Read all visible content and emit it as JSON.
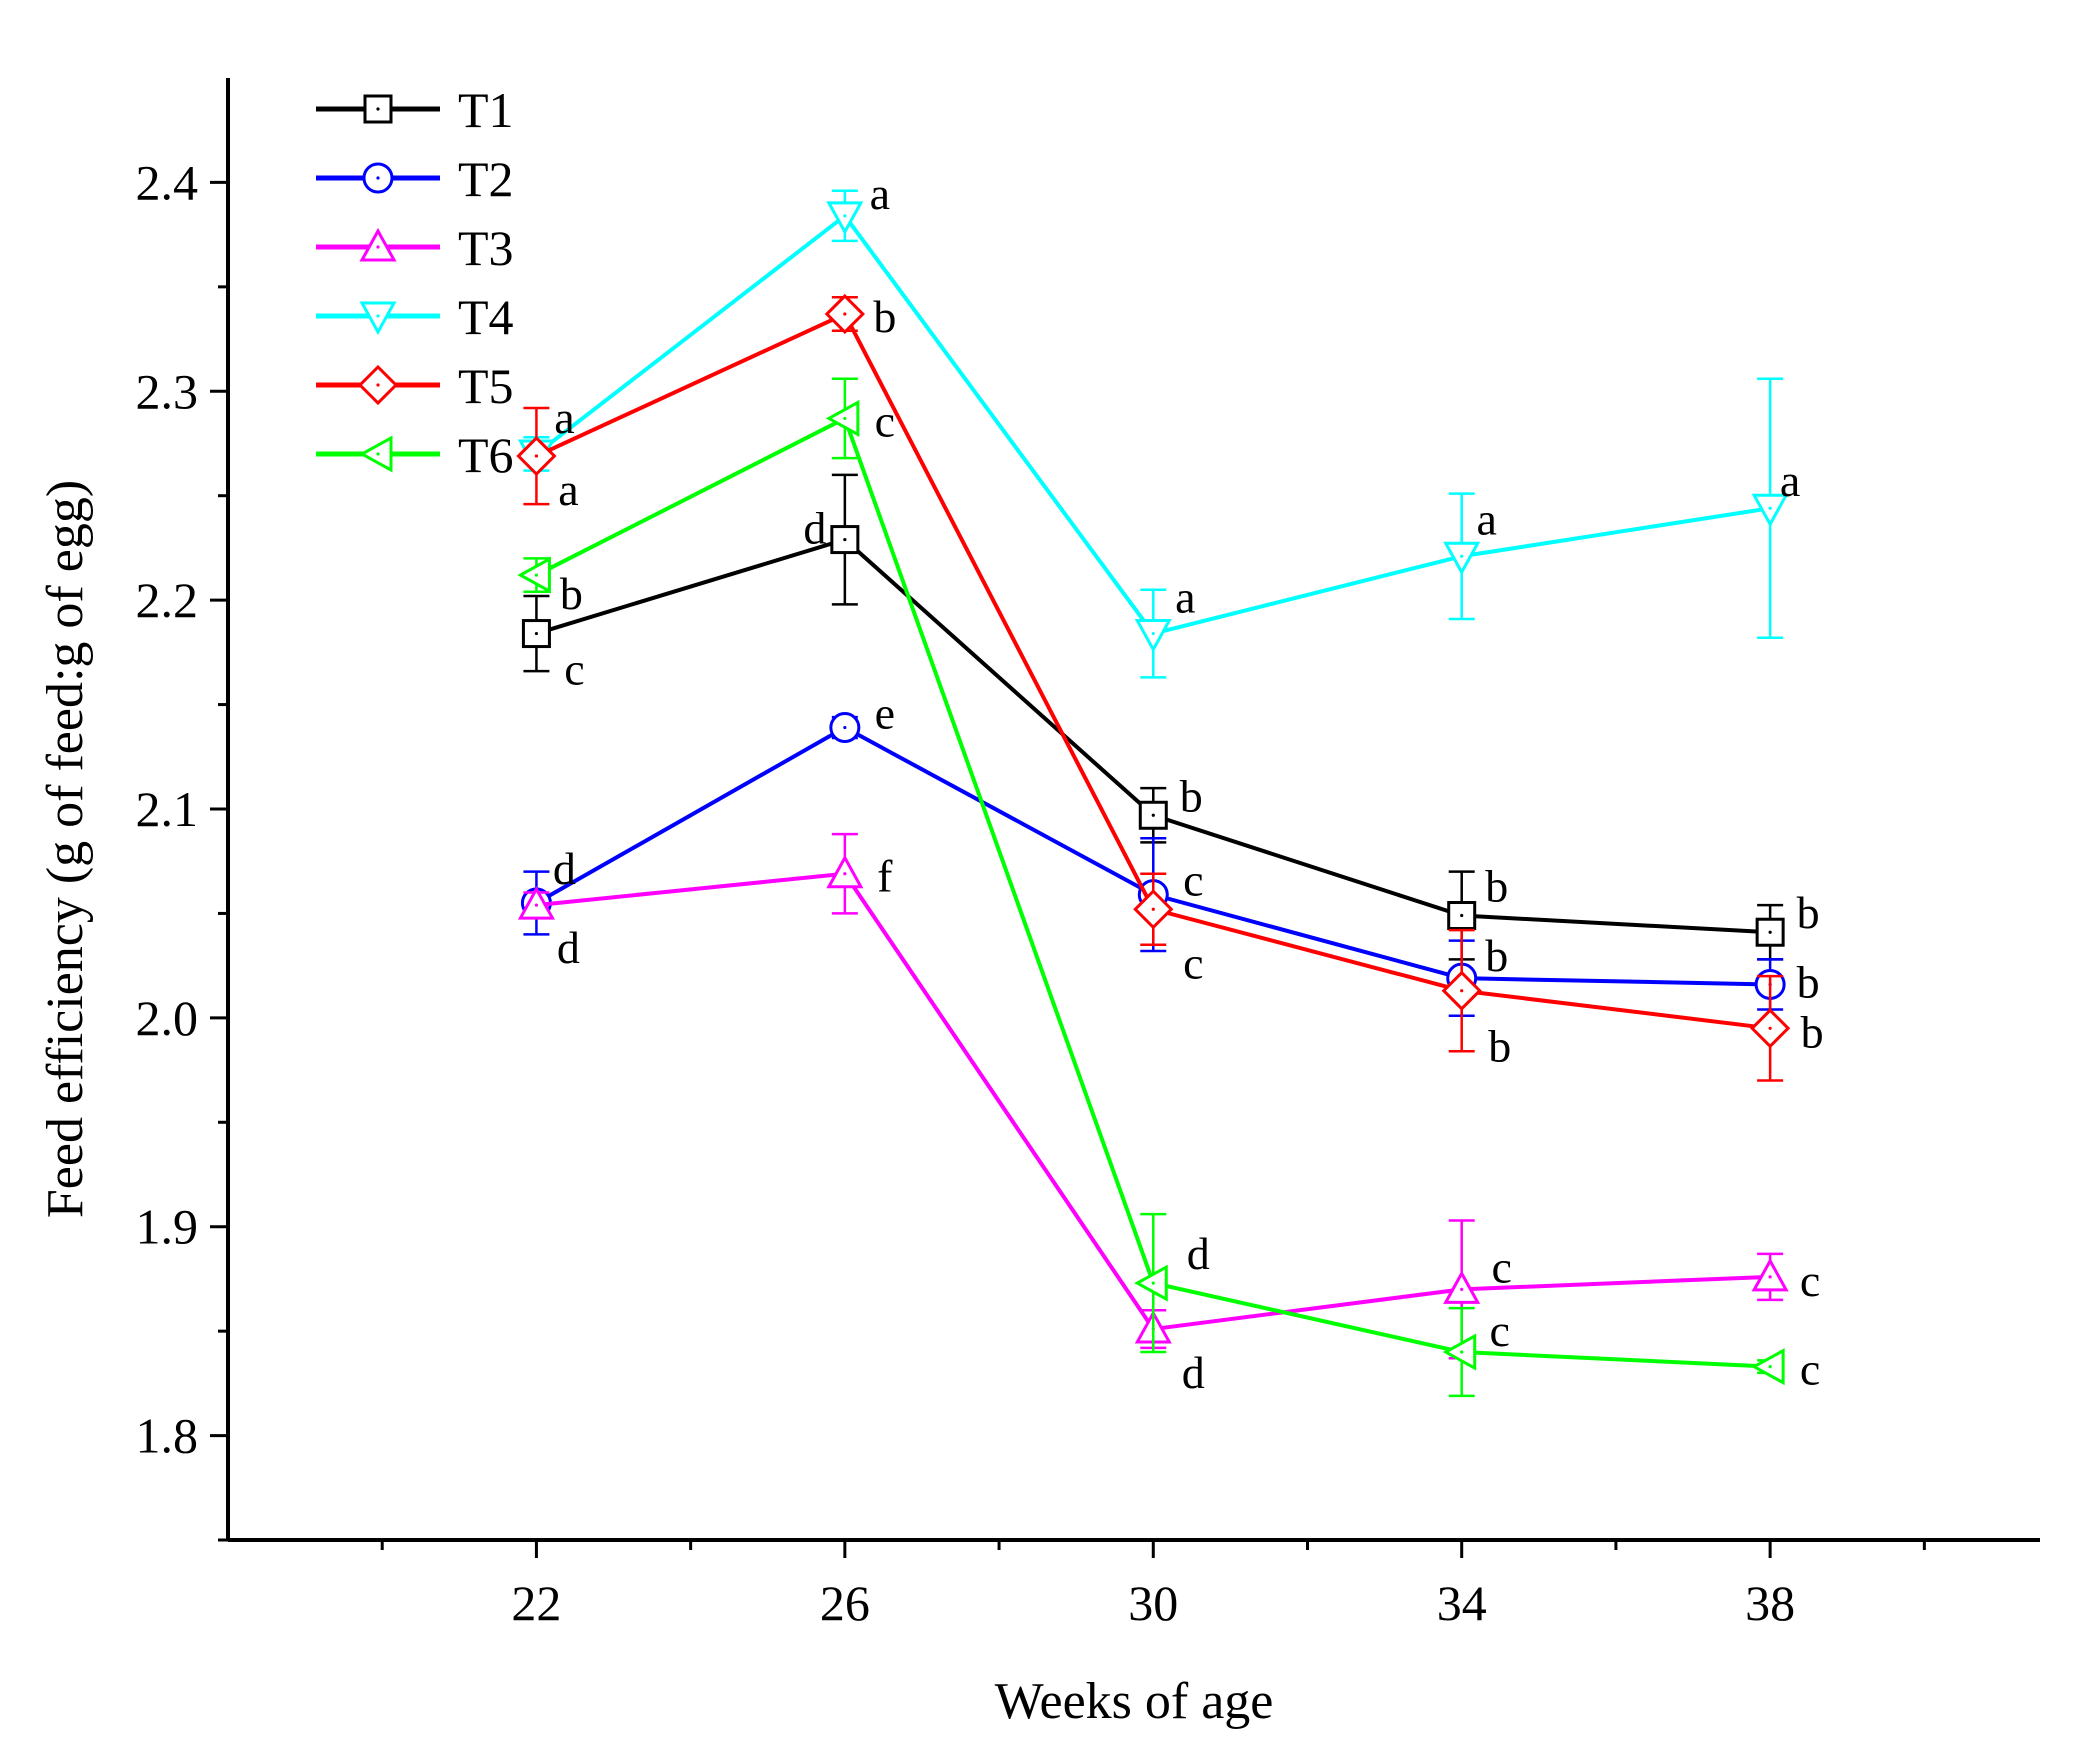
{
  "chart_data": {
    "type": "line",
    "xlabel": "Weeks of age",
    "ylabel": "Feed efficiency (g of feed:g of egg)",
    "x": [
      22,
      26,
      30,
      34,
      38
    ],
    "xlim": [
      18,
      41.5
    ],
    "ylim": [
      1.75,
      2.45
    ],
    "yticks": [
      1.8,
      1.9,
      2.0,
      2.1,
      2.2,
      2.3,
      2.4
    ],
    "ytick_labels": [
      "1.8",
      "1.9",
      "2.0",
      "2.1",
      "2.2",
      "2.3",
      "2.4"
    ],
    "xtick_labels": [
      "22",
      "26",
      "30",
      "34",
      "38"
    ],
    "legend_position": "top-left",
    "series": [
      {
        "name": "T1",
        "color": "#000000",
        "marker": "square",
        "values": [
          2.184,
          2.229,
          2.097,
          2.049,
          2.041
        ],
        "errors": [
          0.018,
          0.031,
          0.013,
          0.021,
          0.013
        ],
        "letters": [
          "c",
          "d",
          "b",
          "b",
          "b"
        ]
      },
      {
        "name": "T2",
        "color": "#0000ff",
        "marker": "circle",
        "values": [
          2.055,
          2.139,
          2.059,
          2.019,
          2.016
        ],
        "errors": [
          0.015,
          0.005,
          0.027,
          0.018,
          0.012
        ],
        "letters": [
          "d",
          "e",
          "c",
          "b",
          "b"
        ]
      },
      {
        "name": "T3",
        "color": "#ff00ff",
        "marker": "triangle-up",
        "values": [
          2.054,
          2.069,
          1.851,
          1.87,
          1.876
        ],
        "errors": [
          0.006,
          0.019,
          0.009,
          0.033,
          0.011
        ],
        "letters": [
          "d",
          "f",
          "d",
          "c",
          "c"
        ]
      },
      {
        "name": "T4",
        "color": "#00ffff",
        "marker": "triangle-down",
        "values": [
          2.27,
          2.384,
          2.184,
          2.221,
          2.244
        ],
        "errors": [
          0.008,
          0.012,
          0.021,
          0.03,
          0.062
        ],
        "letters": [
          "a",
          "a",
          "a",
          "a",
          "a"
        ]
      },
      {
        "name": "T5",
        "color": "#ff0000",
        "marker": "diamond",
        "values": [
          2.269,
          2.337,
          2.052,
          2.013,
          1.995
        ],
        "errors": [
          0.023,
          0.008,
          0.017,
          0.029,
          0.025
        ],
        "letters": [
          "a",
          "b",
          "c",
          "b",
          "b"
        ]
      },
      {
        "name": "T6",
        "color": "#00ff00",
        "marker": "triangle-left",
        "values": [
          2.212,
          2.287,
          1.873,
          1.84,
          1.833
        ],
        "errors": [
          0.008,
          0.019,
          0.033,
          0.021,
          0.003
        ],
        "letters": [
          "b",
          "c",
          "d",
          "c",
          "c"
        ]
      }
    ]
  }
}
